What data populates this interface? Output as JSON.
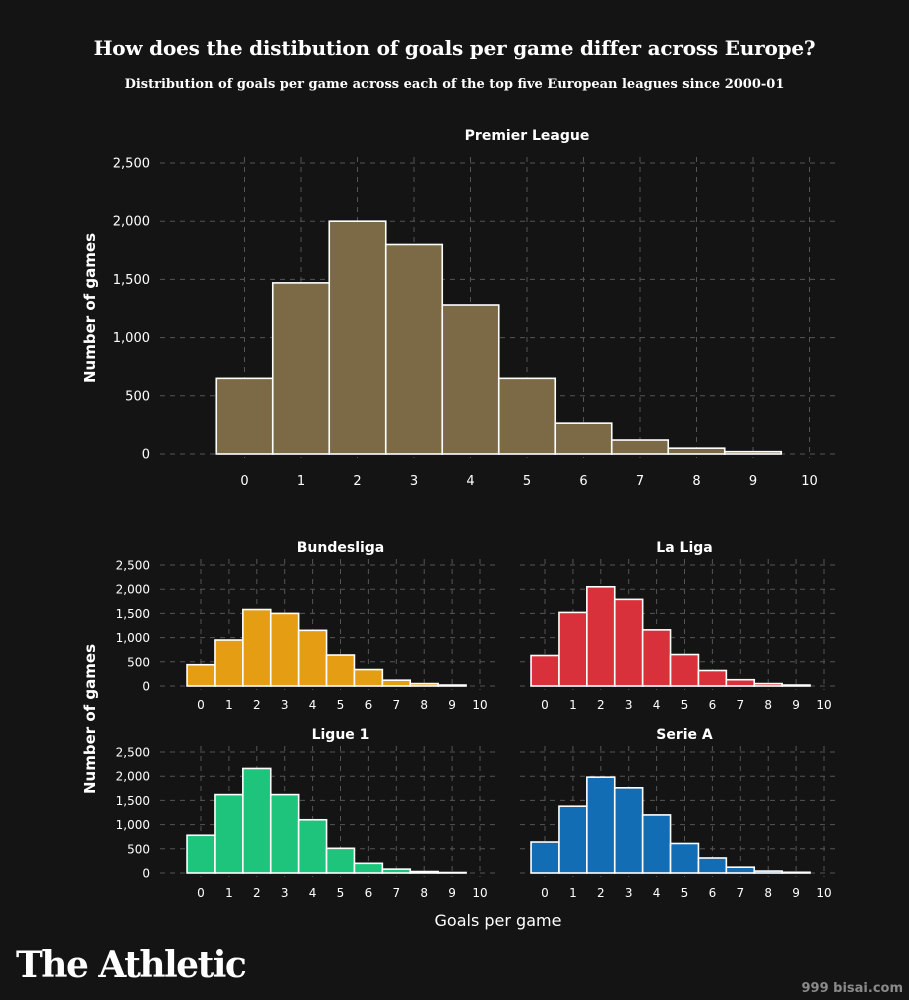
{
  "title": "How does the distibution of goals per game differ across Europe?",
  "subtitle": "Distribution of goals per game across each of the top five European leagues since 2000-01",
  "logo": "The Athletic",
  "watermark": "999 bisai.com",
  "colors": {
    "background": "#141414",
    "grid": "#555555",
    "bar_outline": "#ffffff",
    "text": "#ffffff"
  },
  "chart_data": [
    {
      "type": "bar",
      "title": "Premier League",
      "color": "#7b6a45",
      "categories": [
        "0",
        "1",
        "2",
        "3",
        "4",
        "5",
        "6",
        "7",
        "8",
        "9",
        "10"
      ],
      "values": [
        650,
        1470,
        2000,
        1800,
        1280,
        650,
        265,
        120,
        50,
        20,
        0
      ],
      "ylabel": "Number of games",
      "xlabel": "",
      "yticks": [
        "0",
        "500",
        "1,000",
        "1,500",
        "2,000",
        "2,500"
      ],
      "ylim": [
        0,
        2500
      ],
      "grid": true
    },
    {
      "type": "bar",
      "title": "Bundesliga",
      "color": "#e59e13",
      "categories": [
        "0",
        "1",
        "2",
        "3",
        "4",
        "5",
        "6",
        "7",
        "8",
        "9",
        "10"
      ],
      "values": [
        440,
        950,
        1580,
        1500,
        1150,
        640,
        340,
        120,
        50,
        20,
        0
      ],
      "ylabel": "",
      "xlabel": "",
      "yticks": [
        "0",
        "500",
        "1,000",
        "1,500",
        "2,000",
        "2,500"
      ],
      "ylim": [
        0,
        2500
      ],
      "grid": true
    },
    {
      "type": "bar",
      "title": "La Liga",
      "color": "#d9313b",
      "categories": [
        "0",
        "1",
        "2",
        "3",
        "4",
        "5",
        "6",
        "7",
        "8",
        "9",
        "10"
      ],
      "values": [
        630,
        1520,
        2050,
        1790,
        1160,
        650,
        320,
        130,
        50,
        20,
        0
      ],
      "ylabel": "",
      "xlabel": "",
      "yticks": [],
      "ylim": [
        0,
        2500
      ],
      "grid": true
    },
    {
      "type": "bar",
      "title": "Ligue 1",
      "color": "#1ec47c",
      "categories": [
        "0",
        "1",
        "2",
        "3",
        "4",
        "5",
        "6",
        "7",
        "8",
        "9",
        "10"
      ],
      "values": [
        780,
        1620,
        2160,
        1620,
        1100,
        510,
        200,
        80,
        30,
        10,
        0
      ],
      "ylabel": "",
      "xlabel": "",
      "yticks": [
        "0",
        "500",
        "1,000",
        "1,500",
        "2,000",
        "2,500"
      ],
      "ylim": [
        0,
        2500
      ],
      "grid": true
    },
    {
      "type": "bar",
      "title": "Serie A",
      "color": "#136db4",
      "categories": [
        "0",
        "1",
        "2",
        "3",
        "4",
        "5",
        "6",
        "7",
        "8",
        "9",
        "10"
      ],
      "values": [
        640,
        1380,
        1980,
        1760,
        1200,
        610,
        310,
        120,
        40,
        15,
        0
      ],
      "ylabel": "",
      "xlabel": "",
      "yticks": [],
      "ylim": [
        0,
        2500
      ],
      "grid": true
    }
  ],
  "small_multiples_ylabel": "Number of games",
  "small_multiples_xlabel": "Goals per game"
}
